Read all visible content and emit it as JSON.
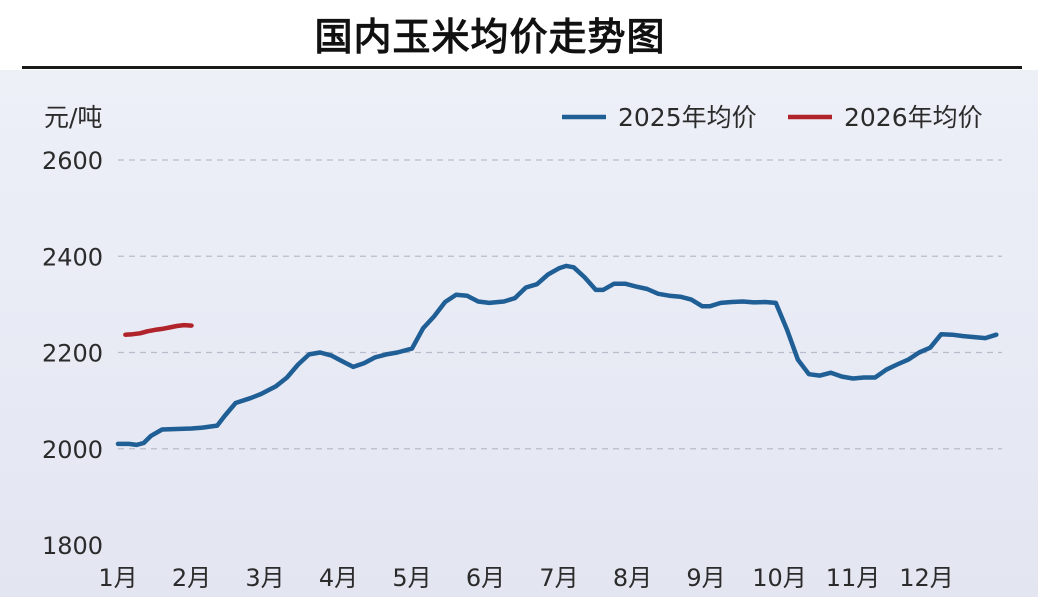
{
  "title": "国内玉米均价走势图",
  "chart_data": {
    "type": "line",
    "title": "国内玉米均价走势图",
    "ylabel": "元/吨",
    "xlabel": "",
    "ylim": [
      1800,
      2600
    ],
    "yticks": [
      1800,
      2000,
      2200,
      2400,
      2600
    ],
    "x_tick_labels": [
      "1月",
      "2月",
      "3月",
      "4月",
      "5月",
      "6月",
      "7月",
      "8月",
      "9月",
      "10月",
      "11月",
      "12月"
    ],
    "x_unit": "month (1 = start of January)",
    "grid": "horizontal dashed",
    "legend_position": "top-right",
    "colors": {
      "2025": "#1f5f95",
      "2026": "#b0232a",
      "grid": "#b9bccb"
    },
    "series": [
      {
        "name": "2025年均价",
        "color": "#1f5f95",
        "x": [
          1.0,
          1.15,
          1.25,
          1.35,
          1.45,
          1.6,
          1.8,
          2.0,
          2.15,
          2.35,
          2.45,
          2.6,
          2.8,
          2.95,
          3.05,
          3.15,
          3.3,
          3.45,
          3.6,
          3.75,
          3.9,
          4.05,
          4.2,
          4.35,
          4.5,
          4.65,
          4.8,
          5.0,
          5.15,
          5.3,
          5.45,
          5.6,
          5.75,
          5.9,
          6.05,
          6.25,
          6.4,
          6.55,
          6.7,
          6.85,
          7.0,
          7.1,
          7.2,
          7.35,
          7.5,
          7.6,
          7.75,
          7.9,
          8.05,
          8.2,
          8.35,
          8.5,
          8.65,
          8.8,
          8.95,
          9.05,
          9.2,
          9.35,
          9.5,
          9.65,
          9.8,
          9.95,
          10.1,
          10.25,
          10.4,
          10.55,
          10.7,
          10.85,
          11.0,
          11.15,
          11.3,
          11.45,
          11.6,
          11.75,
          11.9,
          12.05,
          12.2,
          12.35,
          12.5,
          12.65,
          12.8,
          12.95
        ],
        "values": [
          2010,
          2010,
          2008,
          2012,
          2027,
          2040,
          2041,
          2042,
          2044,
          2048,
          2068,
          2095,
          2105,
          2114,
          2122,
          2130,
          2148,
          2175,
          2196,
          2200,
          2194,
          2182,
          2170,
          2178,
          2190,
          2196,
          2200,
          2208,
          2250,
          2275,
          2305,
          2320,
          2318,
          2306,
          2303,
          2306,
          2313,
          2335,
          2342,
          2362,
          2375,
          2380,
          2377,
          2356,
          2330,
          2330,
          2343,
          2343,
          2337,
          2332,
          2322,
          2318,
          2316,
          2310,
          2296,
          2296,
          2303,
          2305,
          2306,
          2304,
          2305,
          2303,
          2248,
          2185,
          2155,
          2152,
          2158,
          2150,
          2146,
          2148,
          2148,
          2164,
          2175,
          2185,
          2200,
          2210,
          2238,
          2237,
          2234,
          2232,
          2230,
          2237
        ]
      },
      {
        "name": "2026年均价",
        "color": "#b0232a",
        "x": [
          1.1,
          1.2,
          1.3,
          1.4,
          1.5,
          1.6,
          1.7,
          1.8,
          1.9,
          2.0
        ],
        "values": [
          2237,
          2238,
          2240,
          2244,
          2247,
          2249,
          2252,
          2255,
          2257,
          2256
        ]
      }
    ]
  }
}
